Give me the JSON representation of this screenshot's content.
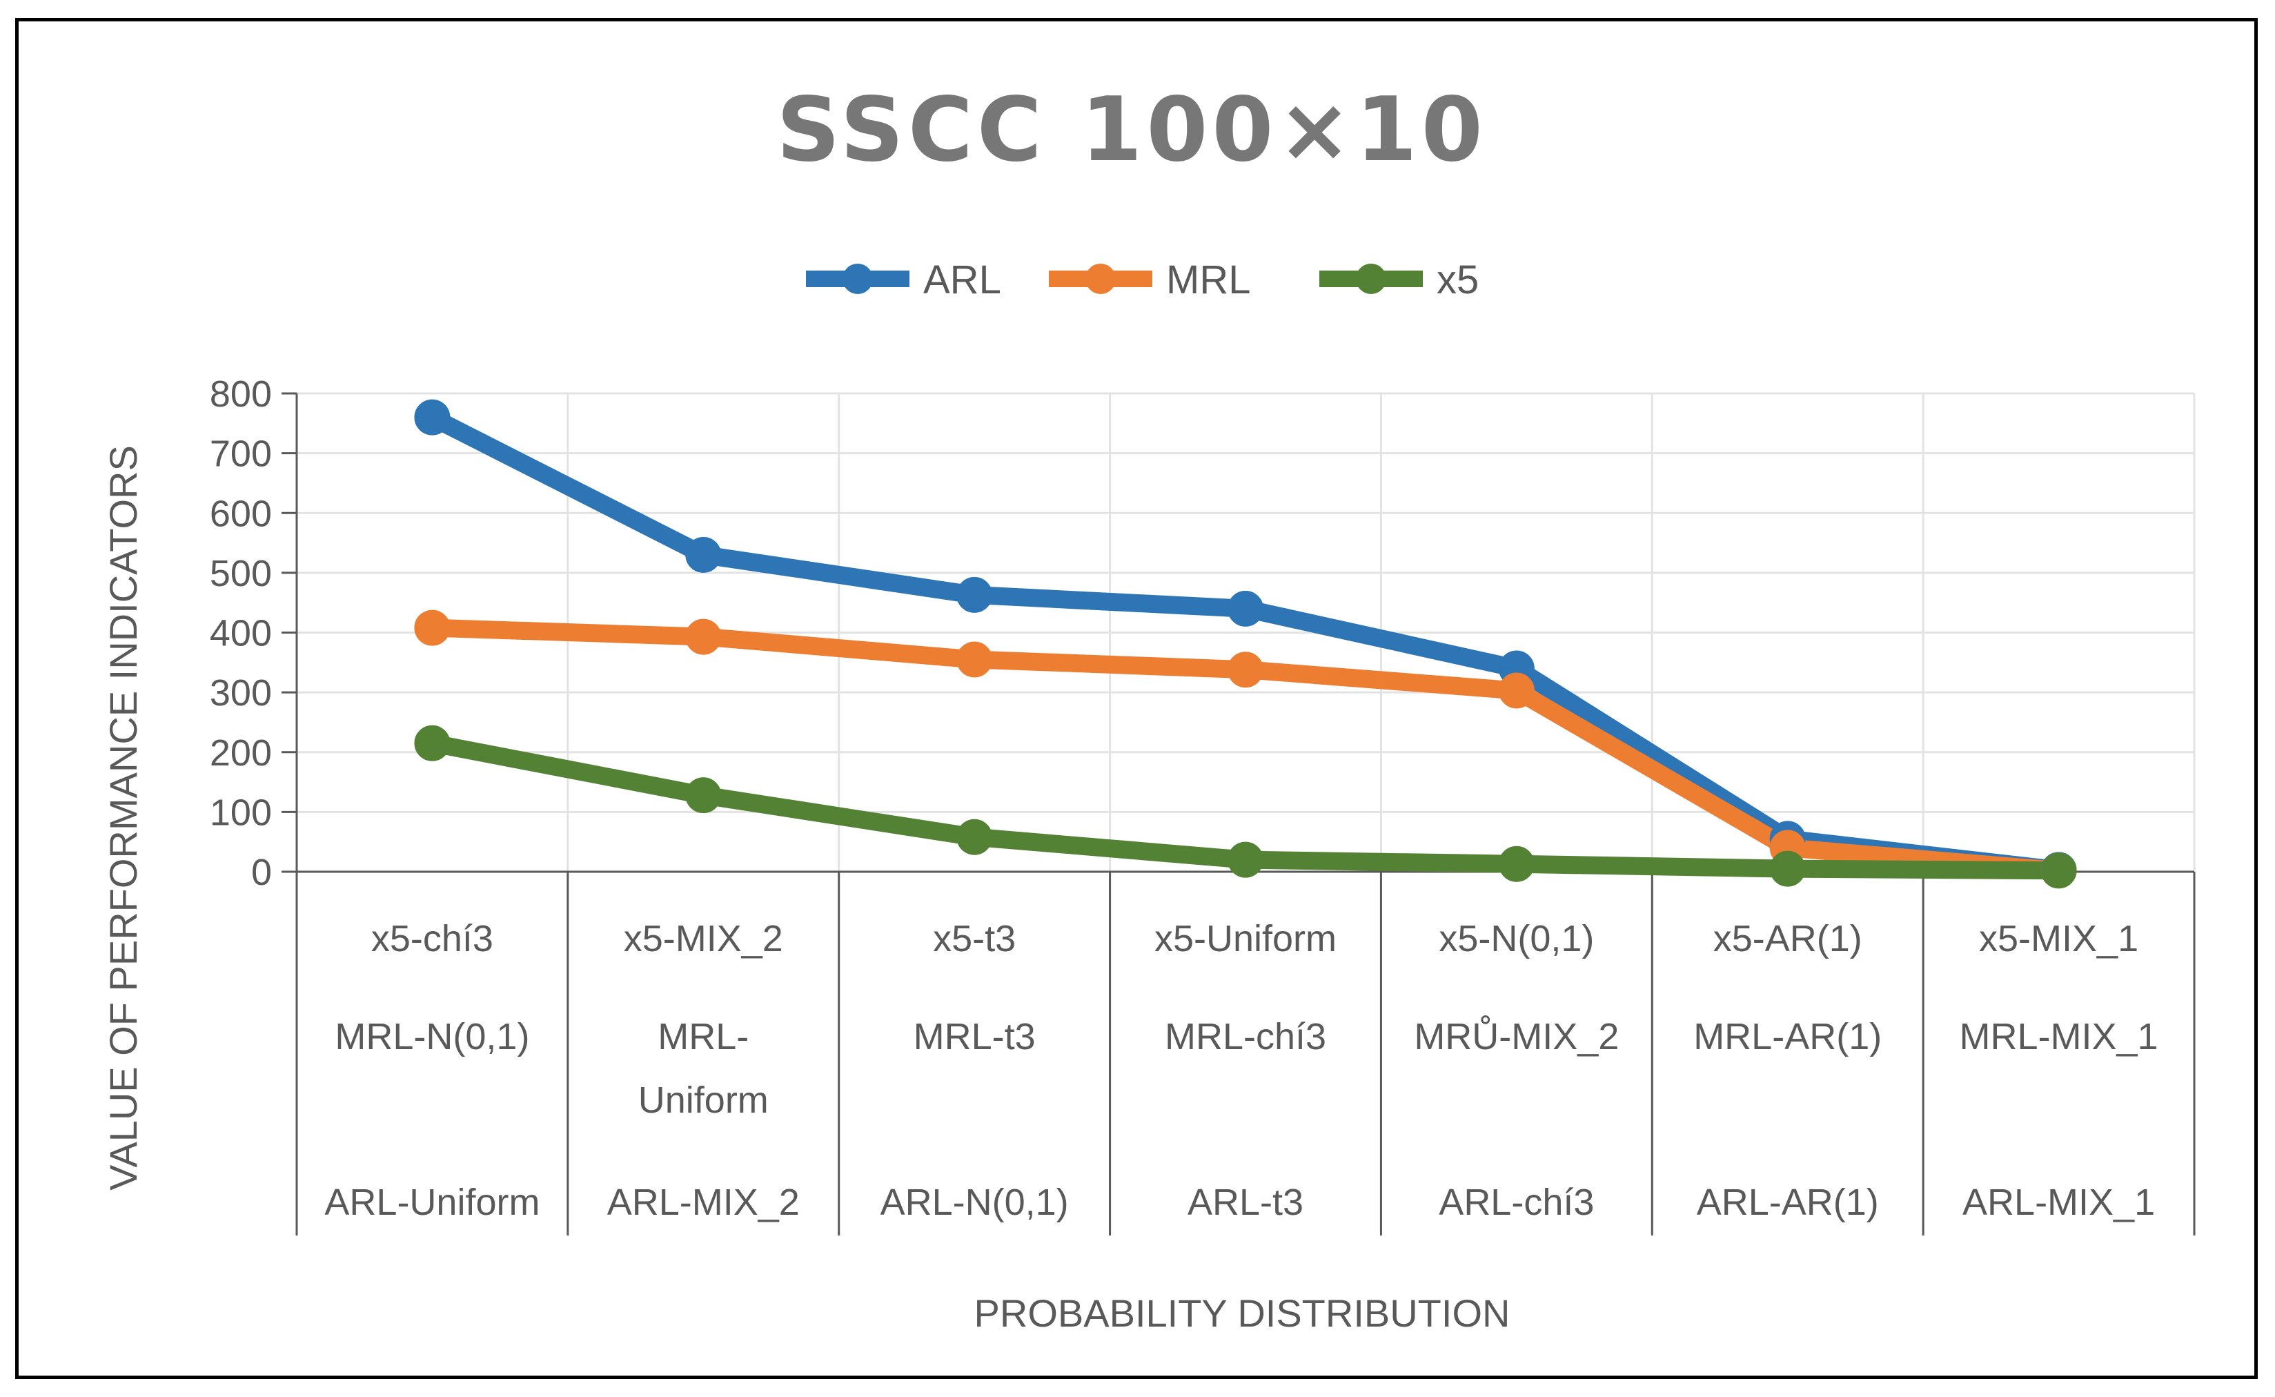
{
  "chart_data": {
    "type": "line",
    "title": "SSCC 100×10",
    "xlabel": "PROBABILITY DISTRIBUTION",
    "ylabel": "VALUE OF PERFORMANCE INDICATORS",
    "ylim": [
      0,
      800
    ],
    "yticks": [
      "0",
      "100",
      "200",
      "300",
      "400",
      "500",
      "600",
      "700",
      "800"
    ],
    "legend_position": "top-center",
    "grid": true,
    "categories": [
      {
        "rows": [
          [
            "x5-chí3"
          ],
          [
            "MRL-N(0,1)"
          ],
          [
            "ARL-Uniform"
          ]
        ]
      },
      {
        "rows": [
          [
            "x5-MIX_2"
          ],
          [
            "MRL-",
            "Uniform"
          ],
          [
            "ARL-MIX_2"
          ]
        ]
      },
      {
        "rows": [
          [
            "x5-t3"
          ],
          [
            "MRL-t3"
          ],
          [
            "ARL-N(0,1)"
          ]
        ]
      },
      {
        "rows": [
          [
            "x5-Uniform"
          ],
          [
            "MRL-chí3"
          ],
          [
            "ARL-t3"
          ]
        ]
      },
      {
        "rows": [
          [
            "x5-N(0,1)"
          ],
          [
            "MRŮ-MIX_2"
          ],
          [
            "ARL-chí3"
          ]
        ]
      },
      {
        "rows": [
          [
            "x5-AR(1)"
          ],
          [
            "MRL-AR(1)"
          ],
          [
            "ARL-AR(1)"
          ]
        ]
      },
      {
        "rows": [
          [
            "x5-MIX_1"
          ],
          [
            "MRL-MIX_1"
          ],
          [
            "ARL-MIX_1"
          ]
        ]
      }
    ],
    "series": [
      {
        "name": "ARL",
        "color": "#2E75B6",
        "values": [
          760,
          530,
          463,
          440,
          340,
          55,
          3
        ]
      },
      {
        "name": "MRL",
        "color": "#ED7D31",
        "values": [
          408,
          393,
          355,
          338,
          303,
          40,
          2
        ]
      },
      {
        "name": "x5",
        "color": "#548235",
        "values": [
          215,
          128,
          58,
          20,
          13,
          5,
          2
        ]
      }
    ]
  }
}
